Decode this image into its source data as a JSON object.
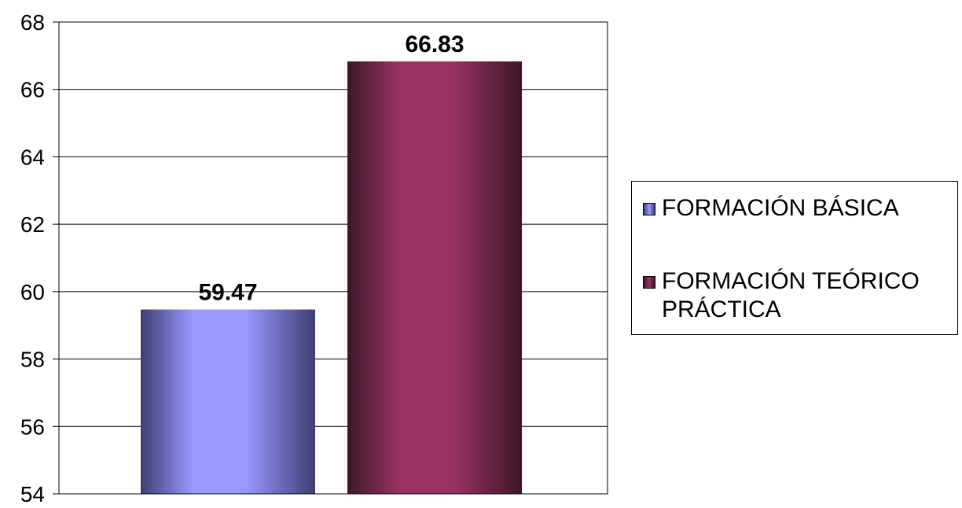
{
  "chart_data": {
    "type": "bar",
    "categories": [
      "FORMACIÓN BÁSICA",
      "FORMACIÓN TEÓRICO PRÁCTICA"
    ],
    "values": [
      59.47,
      66.83
    ],
    "data_labels": [
      "59.47",
      "66.83"
    ],
    "ylim": [
      54,
      68
    ],
    "yticks": [
      "54",
      "56",
      "58",
      "60",
      "62",
      "64",
      "66",
      "68"
    ],
    "grid": true,
    "legend_position": "right",
    "title": "",
    "xlabel": "",
    "ylabel": "",
    "colors": [
      "#9999ff",
      "#993366"
    ]
  },
  "legend": {
    "items": [
      {
        "label": "FORMACIÓN BÁSICA",
        "color": "#9999ff"
      },
      {
        "label": "FORMACIÓN TEÓRICO\nPRÁCTICA",
        "color": "#993366"
      }
    ]
  }
}
